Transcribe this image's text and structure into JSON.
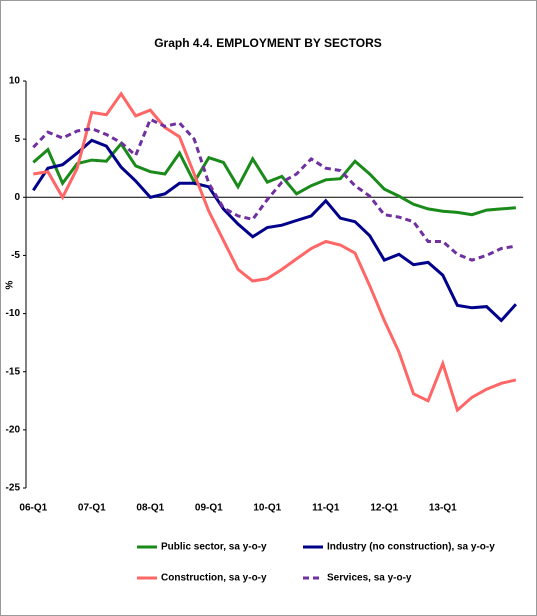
{
  "chart_data": {
    "type": "line",
    "title": "Graph 4.4. EMPLOYMENT BY SECTORS",
    "y_label": "%",
    "categories": [
      "06-Q1",
      null,
      null,
      null,
      "07-Q1",
      null,
      null,
      null,
      "08-Q1",
      null,
      null,
      null,
      "09-Q1",
      null,
      null,
      null,
      "10-Q1",
      null,
      null,
      null,
      "11-Q1",
      null,
      null,
      null,
      "12-Q1",
      null,
      null,
      null,
      "13-Q1",
      null,
      null,
      null,
      null,
      null
    ],
    "ylim": [
      -25,
      10
    ],
    "yticks": [
      -25,
      -20,
      -15,
      -10,
      -5,
      0,
      5,
      10
    ],
    "series": [
      {
        "name": "Public sector, sa y-o-y",
        "color": "#1a8a1a",
        "line_style": "solid",
        "values": [
          3.0,
          4.1,
          1.2,
          2.9,
          3.2,
          3.1,
          4.6,
          2.7,
          2.2,
          2.0,
          3.8,
          1.3,
          3.4,
          3.0,
          0.9,
          3.3,
          1.3,
          1.8,
          0.3,
          1.0,
          1.5,
          1.6,
          3.1,
          2.0,
          0.7,
          0.1,
          -0.6,
          -1.0,
          -1.2,
          -1.3,
          -1.5,
          -1.1,
          -1.0,
          -0.9
        ]
      },
      {
        "name": "Industry (no construction), sa y-o-y",
        "color": "#00008b",
        "line_style": "solid",
        "values": [
          0.6,
          2.5,
          2.8,
          3.8,
          4.9,
          4.4,
          2.6,
          1.4,
          0.0,
          0.3,
          1.2,
          1.2,
          0.9,
          -1.0,
          -2.3,
          -3.4,
          -2.6,
          -2.4,
          -2.0,
          -1.6,
          -0.3,
          -1.8,
          -2.1,
          -3.3,
          -5.4,
          -4.9,
          -5.8,
          -5.6,
          -6.7,
          -9.3,
          -9.5,
          -9.4,
          -10.6,
          -9.2
        ]
      },
      {
        "name": "Construction, sa y-o-y",
        "color": "#ff6666",
        "line_style": "solid",
        "values": [
          2.0,
          2.2,
          0.0,
          2.5,
          7.3,
          7.1,
          8.9,
          7.0,
          7.5,
          6.0,
          5.2,
          2.0,
          -1.2,
          -3.7,
          -6.2,
          -7.2,
          -7.0,
          -6.2,
          -5.3,
          -4.4,
          -3.8,
          -4.1,
          -4.8,
          -7.6,
          -10.6,
          -13.3,
          -16.9,
          -17.5,
          -14.3,
          -18.3,
          -17.2,
          -16.5,
          -16.0,
          -15.7
        ]
      },
      {
        "name": "Services, sa y-o-y",
        "color": "#7030a0",
        "line_style": "dashed",
        "values": [
          4.3,
          5.6,
          5.1,
          5.7,
          5.9,
          5.4,
          4.7,
          3.6,
          6.7,
          6.1,
          6.4,
          5.0,
          1.2,
          -0.9,
          -1.6,
          -1.9,
          -0.2,
          1.3,
          2.0,
          3.3,
          2.5,
          2.3,
          1.0,
          0.1,
          -1.5,
          -1.7,
          -2.1,
          -3.8,
          -3.8,
          -4.9,
          -5.4,
          -5.0,
          -4.4,
          -4.2
        ]
      }
    ]
  }
}
